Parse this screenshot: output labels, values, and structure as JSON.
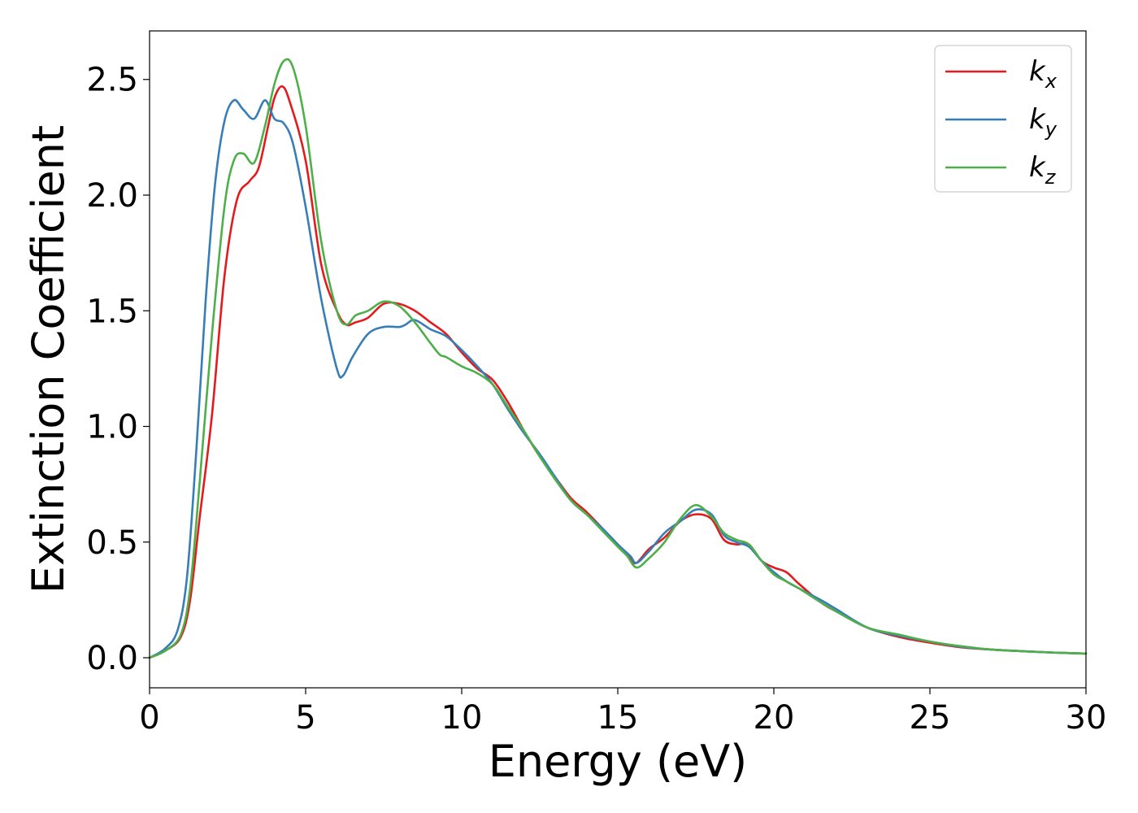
{
  "chart_data": {
    "type": "line",
    "title": "",
    "xlabel": "Energy (eV)",
    "ylabel": "Extinction Coefficient",
    "xlim": [
      0,
      30
    ],
    "ylim": [
      -0.13,
      2.71
    ],
    "xticks": [
      0,
      5,
      10,
      15,
      20,
      25,
      30
    ],
    "xtick_labels": [
      "0",
      "5",
      "10",
      "15",
      "20",
      "25",
      "30"
    ],
    "yticks": [
      0.0,
      0.5,
      1.0,
      1.5,
      2.0,
      2.5
    ],
    "ytick_labels": [
      "0.0",
      "0.5",
      "1.0",
      "1.5",
      "2.0",
      "2.5"
    ],
    "grid": false,
    "legend_position": "top-right",
    "series": [
      {
        "name": "k_x",
        "label_base": "k",
        "label_sub": "x",
        "color": "#e41a1c",
        "x": [
          0,
          0.5,
          1.0,
          1.3,
          1.6,
          2.0,
          2.4,
          2.8,
          3.2,
          3.5,
          3.8,
          4.0,
          4.25,
          4.5,
          5.0,
          5.5,
          6.0,
          6.3,
          6.6,
          7.0,
          7.5,
          8.0,
          8.5,
          9.0,
          9.5,
          10.0,
          10.5,
          11.0,
          11.5,
          12.0,
          12.5,
          13.0,
          13.5,
          14.0,
          14.5,
          15.0,
          15.4,
          15.6,
          16.0,
          16.5,
          17.0,
          17.5,
          18.0,
          18.4,
          18.8,
          19.2,
          19.6,
          20.0,
          20.4,
          20.8,
          21.5,
          22.0,
          23.0,
          24.0,
          25.0,
          26.0,
          27.0,
          28.0,
          29.0,
          30.0
        ],
        "y": [
          0.0,
          0.03,
          0.09,
          0.25,
          0.6,
          1.05,
          1.65,
          1.98,
          2.06,
          2.12,
          2.3,
          2.42,
          2.47,
          2.4,
          2.15,
          1.7,
          1.5,
          1.44,
          1.45,
          1.47,
          1.53,
          1.53,
          1.5,
          1.45,
          1.4,
          1.32,
          1.25,
          1.2,
          1.1,
          0.98,
          0.87,
          0.78,
          0.69,
          0.63,
          0.56,
          0.49,
          0.43,
          0.41,
          0.47,
          0.52,
          0.59,
          0.62,
          0.6,
          0.51,
          0.49,
          0.49,
          0.42,
          0.39,
          0.37,
          0.32,
          0.24,
          0.2,
          0.13,
          0.09,
          0.065,
          0.045,
          0.035,
          0.028,
          0.022,
          0.018
        ]
      },
      {
        "name": "k_y",
        "label_base": "k",
        "label_sub": "y",
        "color": "#377eb8",
        "x": [
          0,
          0.5,
          0.9,
          1.2,
          1.5,
          1.8,
          2.1,
          2.4,
          2.7,
          3.0,
          3.35,
          3.7,
          4.0,
          4.3,
          4.6,
          5.0,
          5.5,
          6.0,
          6.2,
          6.5,
          7.0,
          7.5,
          8.0,
          8.2,
          8.5,
          9.0,
          9.5,
          10.0,
          10.5,
          11.0,
          11.5,
          12.0,
          12.5,
          13.0,
          13.5,
          14.0,
          14.5,
          15.0,
          15.4,
          15.6,
          16.0,
          16.5,
          17.0,
          17.5,
          18.0,
          18.4,
          18.8,
          19.2,
          19.6,
          20.0,
          20.4,
          20.8,
          21.5,
          22.0,
          23.0,
          24.0,
          25.0,
          26.0,
          27.0,
          28.0,
          29.0,
          30.0
        ],
        "y": [
          0.0,
          0.04,
          0.12,
          0.35,
          0.9,
          1.55,
          2.05,
          2.32,
          2.41,
          2.37,
          2.33,
          2.41,
          2.33,
          2.31,
          2.22,
          1.95,
          1.55,
          1.25,
          1.22,
          1.3,
          1.4,
          1.43,
          1.43,
          1.44,
          1.46,
          1.42,
          1.39,
          1.33,
          1.26,
          1.18,
          1.07,
          0.97,
          0.88,
          0.78,
          0.68,
          0.62,
          0.56,
          0.49,
          0.44,
          0.41,
          0.46,
          0.54,
          0.59,
          0.64,
          0.62,
          0.53,
          0.5,
          0.48,
          0.42,
          0.37,
          0.33,
          0.3,
          0.25,
          0.21,
          0.13,
          0.095,
          0.07,
          0.047,
          0.035,
          0.028,
          0.022,
          0.018
        ]
      },
      {
        "name": "k_z",
        "label_base": "k",
        "label_sub": "z",
        "color": "#4daf4a",
        "x": [
          0,
          0.5,
          1.0,
          1.3,
          1.6,
          2.0,
          2.4,
          2.7,
          3.0,
          3.35,
          3.7,
          4.0,
          4.3,
          4.6,
          5.0,
          5.5,
          6.0,
          6.3,
          6.6,
          7.0,
          7.5,
          8.0,
          8.5,
          9.0,
          9.3,
          9.5,
          10.0,
          10.5,
          11.0,
          11.5,
          12.0,
          12.5,
          13.0,
          13.5,
          14.0,
          14.5,
          15.0,
          15.3,
          15.6,
          16.0,
          16.5,
          17.0,
          17.5,
          18.0,
          18.4,
          18.8,
          19.2,
          19.6,
          20.0,
          20.4,
          20.8,
          21.5,
          22.0,
          23.0,
          24.0,
          25.0,
          26.0,
          27.0,
          28.0,
          29.0,
          30.0
        ],
        "y": [
          0.0,
          0.03,
          0.1,
          0.3,
          0.75,
          1.4,
          1.95,
          2.15,
          2.18,
          2.14,
          2.3,
          2.48,
          2.58,
          2.55,
          2.3,
          1.8,
          1.5,
          1.44,
          1.48,
          1.5,
          1.54,
          1.52,
          1.45,
          1.36,
          1.31,
          1.3,
          1.26,
          1.23,
          1.18,
          1.08,
          0.98,
          0.87,
          0.77,
          0.68,
          0.62,
          0.55,
          0.48,
          0.44,
          0.39,
          0.43,
          0.5,
          0.6,
          0.66,
          0.61,
          0.54,
          0.51,
          0.49,
          0.42,
          0.36,
          0.33,
          0.3,
          0.24,
          0.2,
          0.13,
          0.1,
          0.07,
          0.05,
          0.035,
          0.028,
          0.022,
          0.018
        ]
      }
    ]
  }
}
